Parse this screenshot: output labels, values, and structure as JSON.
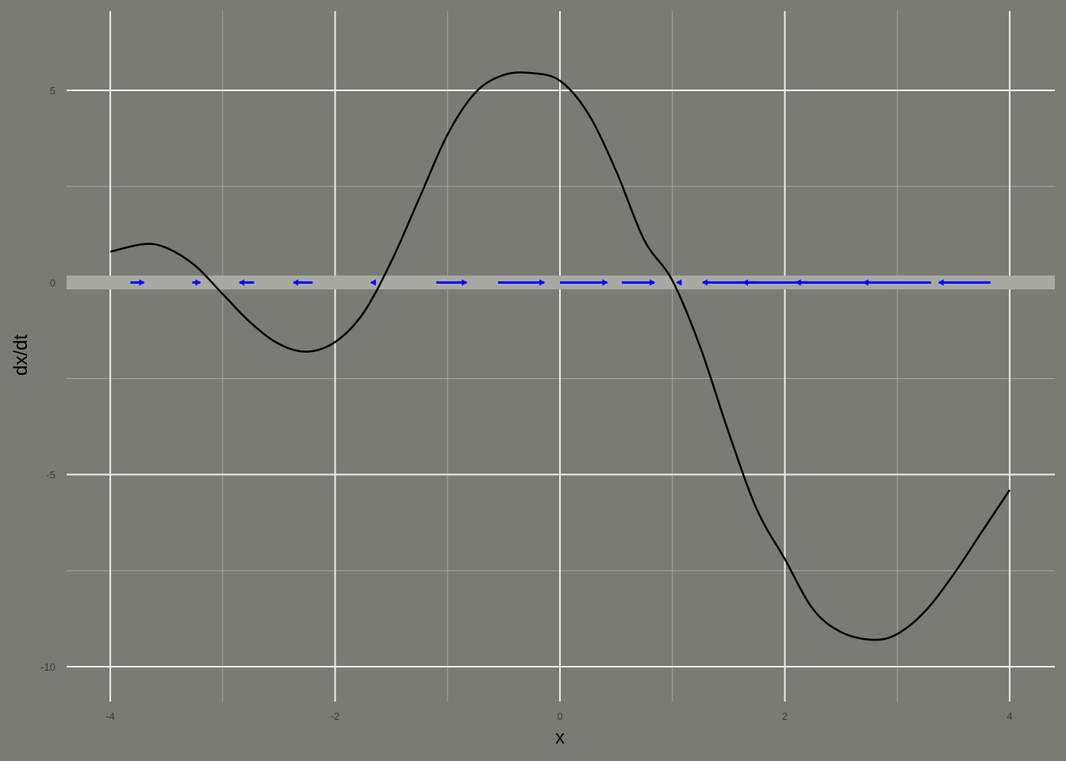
{
  "chart_data": {
    "type": "line",
    "title": "",
    "xlabel": "x",
    "ylabel": "dx/dt",
    "xlim": [
      -4,
      4
    ],
    "ylim": [
      -10,
      5
    ],
    "x_ticks": [
      -4,
      -2,
      0,
      2,
      4
    ],
    "y_ticks": [
      5,
      0,
      -5,
      -10
    ],
    "x_tick_labels": [
      "-4",
      "-2",
      "0",
      "2",
      "4"
    ],
    "y_tick_labels": [
      "5",
      "0",
      "-5",
      "-10"
    ],
    "grid": true,
    "legend": "none",
    "series": [
      {
        "color": "#000000",
        "x": [
          -4,
          -3.7,
          -3.5,
          -3.25,
          -3.0,
          -2.75,
          -2.5,
          -2.25,
          -2.0,
          -1.75,
          -1.5,
          -1.25,
          -1.0,
          -0.75,
          -0.5,
          -0.25,
          0,
          0.25,
          0.5,
          0.75,
          1.0,
          1.25,
          1.5,
          1.75,
          2.0,
          2.25,
          2.5,
          2.78,
          3.0,
          3.25,
          3.5,
          3.75,
          4.0
        ],
        "y": [
          0.8,
          1.0,
          0.9,
          0.45,
          -0.3,
          -1.05,
          -1.6,
          -1.8,
          -1.55,
          -0.8,
          0.55,
          2.2,
          3.85,
          4.95,
          5.4,
          5.45,
          5.25,
          4.4,
          2.9,
          1.1,
          0.05,
          -1.7,
          -3.9,
          -5.9,
          -7.2,
          -8.5,
          -9.1,
          -9.3,
          -9.15,
          -8.55,
          -7.6,
          -6.5,
          -5.4
        ]
      }
    ],
    "highlight_band": {
      "y": [
        -0.18,
        0.18
      ],
      "color": "#a9a9a4"
    },
    "flow_arrows": {
      "color": "#0000ff",
      "y": 0,
      "arrows": [
        {
          "x_from": -3.82,
          "x_to": -3.7
        },
        {
          "x_from": -3.27,
          "x_to": -3.2
        },
        {
          "x_from": -2.72,
          "x_to": -2.85
        },
        {
          "x_from": -2.2,
          "x_to": -2.37
        },
        {
          "x_from": -1.65,
          "x_to": -1.68
        },
        {
          "x_from": -1.1,
          "x_to": -0.83
        },
        {
          "x_from": -0.55,
          "x_to": -0.14
        },
        {
          "x_from": 0.0,
          "x_to": 0.42
        },
        {
          "x_from": 0.55,
          "x_to": 0.84
        },
        {
          "x_from": 1.08,
          "x_to": 1.04
        },
        {
          "x_from": 1.75,
          "x_to": 1.27
        },
        {
          "x_from": 2.2,
          "x_to": 1.63
        },
        {
          "x_from": 2.75,
          "x_to": 2.1
        },
        {
          "x_from": 3.3,
          "x_to": 2.7
        },
        {
          "x_from": 3.83,
          "x_to": 3.37
        }
      ]
    }
  }
}
